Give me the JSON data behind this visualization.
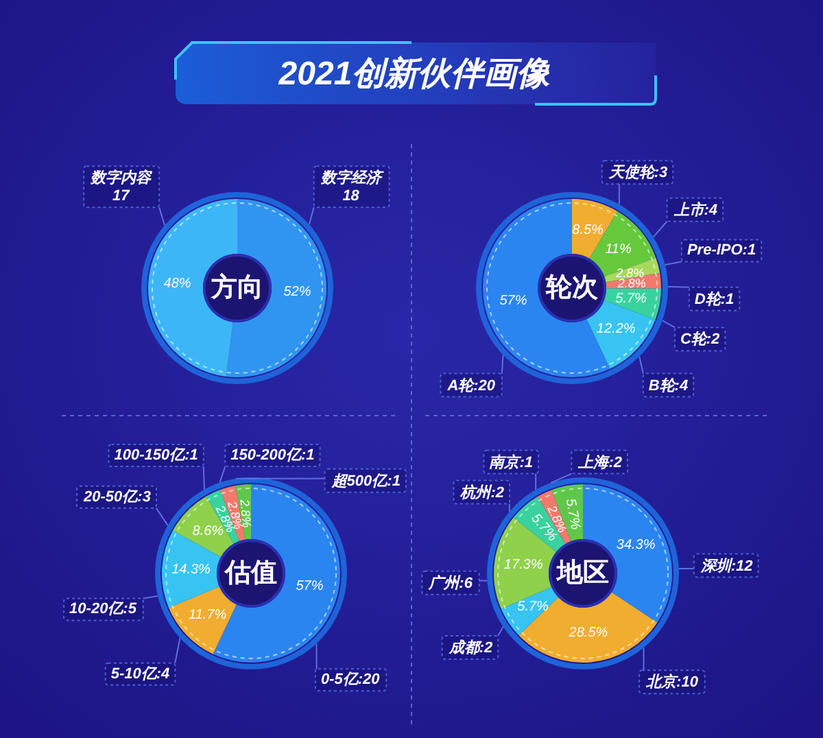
{
  "chart_data": [
    {
      "type": "other",
      "title": "2021创新伙伴画像"
    },
    {
      "type": "donut",
      "title": "方向",
      "categories": [
        "数字经济\n18",
        "数字内容\n17"
      ],
      "values": [
        52,
        48
      ],
      "colors": [
        "#2f95f0",
        "#3db6f7"
      ],
      "value_labels": [
        "52%",
        "48%"
      ]
    },
    {
      "type": "donut",
      "title": "轮次",
      "categories": [
        "天使轮:3",
        "上市:4",
        "Pre-IPO:1",
        "D轮:1",
        "C轮:2",
        "B轮:4",
        "A轮:20"
      ],
      "values": [
        8.5,
        11,
        2.8,
        2.8,
        5.7,
        12.2,
        57
      ],
      "colors": [
        "#f1ad2f",
        "#66c93c",
        "#a7d95a",
        "#f27a6d",
        "#39d29e",
        "#37c4f3",
        "#2b85f0"
      ],
      "value_labels": [
        "8.5%",
        "11%",
        "2.8%",
        "2.8%",
        "5.7%",
        "12.2%",
        "57%"
      ]
    },
    {
      "type": "donut",
      "title": "估值",
      "categories": [
        "0-5亿:20",
        "5-10亿:4",
        "10-20亿:5",
        "20-50亿:3",
        "100-150亿:1",
        "150-200亿:1",
        "超500亿:1"
      ],
      "values": [
        57,
        11.7,
        14.3,
        8.6,
        2.8,
        2.8,
        2.8
      ],
      "colors": [
        "#2b85f0",
        "#f1ad2f",
        "#37c4f3",
        "#8fd14b",
        "#39d29e",
        "#f27a6d",
        "#5fc84a"
      ],
      "value_labels": [
        "57%",
        "11.7%",
        "14.3%",
        "8.6%",
        "2.8%",
        "2.8%",
        "2.8%"
      ]
    },
    {
      "type": "donut",
      "title": "地区",
      "categories": [
        "深圳:12",
        "北京:10",
        "成都:2",
        "广州:6",
        "杭州:2",
        "南京:1",
        "上海:2"
      ],
      "values": [
        34.3,
        28.5,
        5.7,
        17.3,
        5.7,
        2.8,
        5.7
      ],
      "colors": [
        "#2b85f0",
        "#f1ad2f",
        "#37c4f3",
        "#8fd14b",
        "#39d29e",
        "#f27a6d",
        "#5fc84a"
      ],
      "value_labels": [
        "34.3%",
        "28.5%",
        "5.7%",
        "17.3%",
        "5.7%",
        "2.8%",
        "5.7%"
      ]
    }
  ]
}
